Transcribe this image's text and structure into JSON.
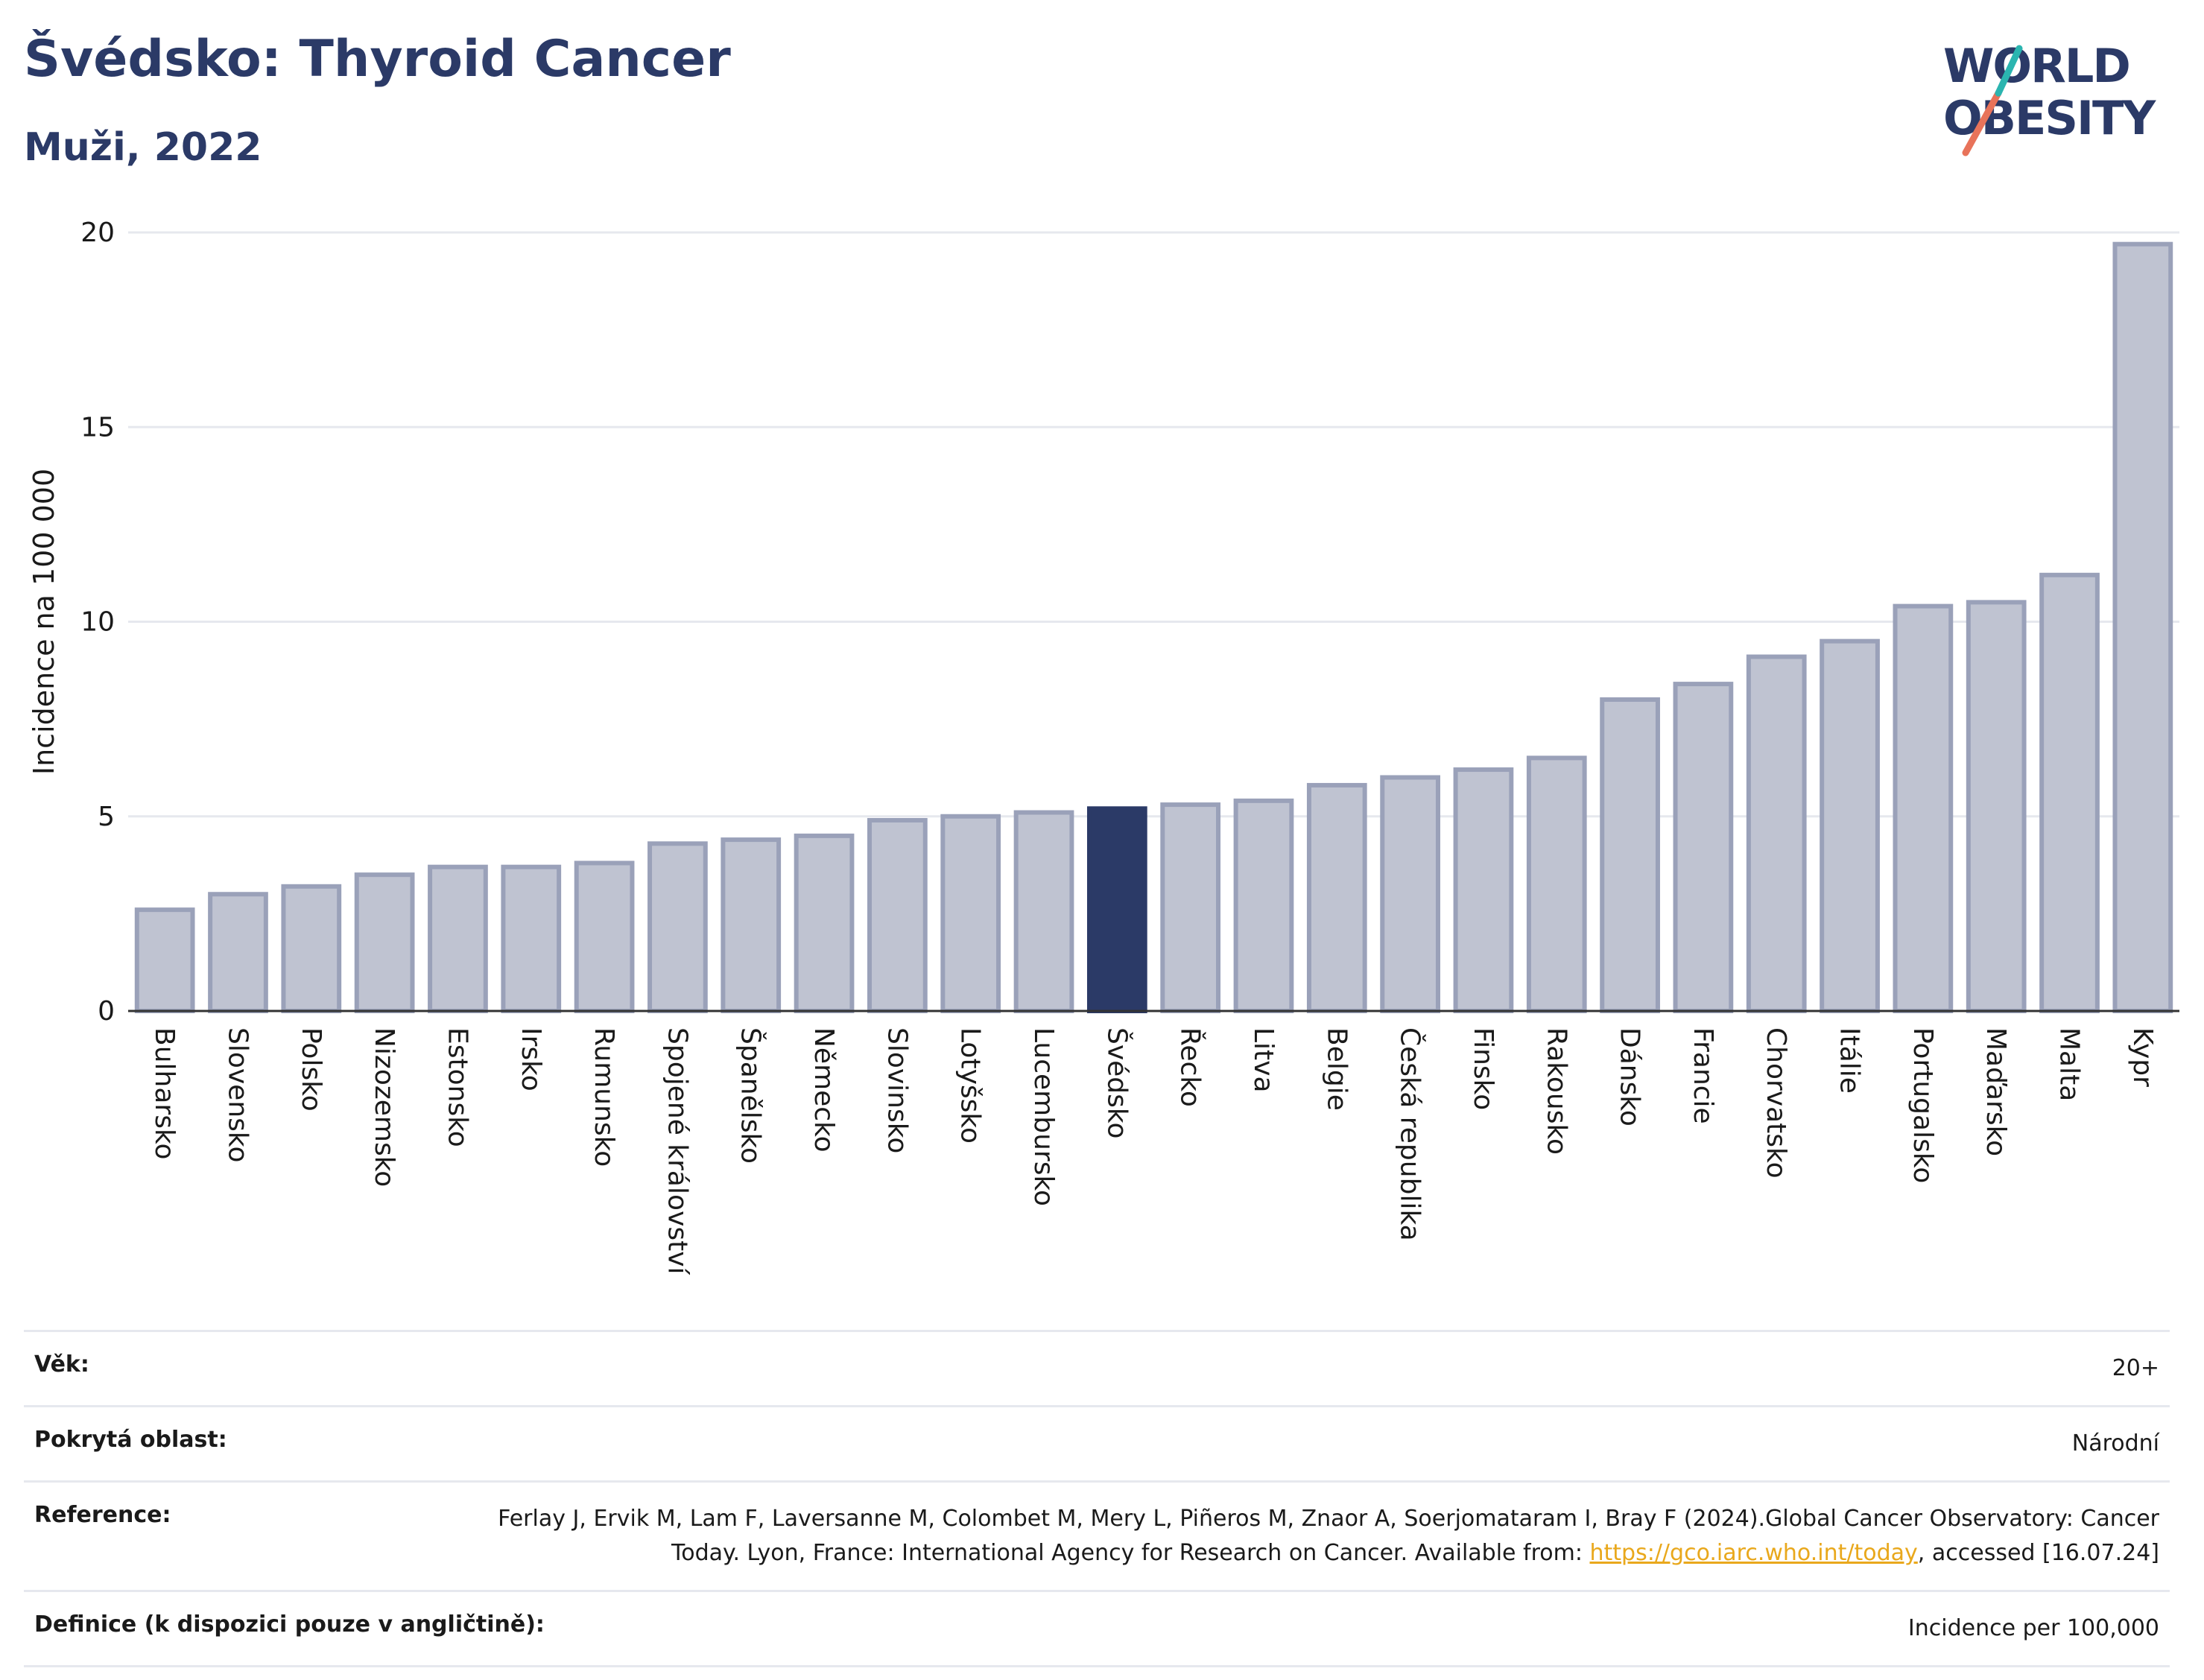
{
  "header": {
    "title": "Švédsko: Thyroid Cancer",
    "subtitle": "Muži, 2022"
  },
  "logo": {
    "line1": "WORLD",
    "line2": "OBESITY"
  },
  "colors": {
    "bar": "#bfc3d1",
    "bar_border": "#9aa1b9",
    "highlight": "#2b3a67",
    "grid": "#e6e8ee",
    "text": "#1a1a1a"
  },
  "chart_data": {
    "type": "bar",
    "ylabel": "Incidence na 100 000",
    "ylim": [
      0,
      20
    ],
    "yticks": [
      0,
      5,
      10,
      15,
      20
    ],
    "highlight": "Švédsko",
    "categories": [
      "Bulharsko",
      "Slovensko",
      "Polsko",
      "Nizozemsko",
      "Estonsko",
      "Irsko",
      "Rumunsko",
      "Spojené království",
      "Španělsko",
      "Německo",
      "Slovinsko",
      "Lotyšsko",
      "Lucembursko",
      "Švédsko",
      "Řecko",
      "Litva",
      "Belgie",
      "Česká republika",
      "Finsko",
      "Rakousko",
      "Dánsko",
      "Francie",
      "Chorvatsko",
      "Itálie",
      "Portugalsko",
      "Maďarsko",
      "Malta",
      "Kypr"
    ],
    "values": [
      2.6,
      3.0,
      3.2,
      3.5,
      3.7,
      3.7,
      3.8,
      4.3,
      4.4,
      4.5,
      4.9,
      5.0,
      5.1,
      5.2,
      5.3,
      5.4,
      5.8,
      6.0,
      6.2,
      6.5,
      8.0,
      8.4,
      9.1,
      9.5,
      10.4,
      10.5,
      11.2,
      19.7
    ]
  },
  "meta": {
    "age_label": "Věk:",
    "age_value": "20+",
    "coverage_label": "Pokrytá oblast:",
    "coverage_value": "Národní",
    "reference_label": "Reference:",
    "reference_text": "Ferlay J, Ervik M, Lam F, Laversanne M, Colombet M, Mery L, Piñeros M, Znaor A, Soerjomataram I, Bray F (2024).Global Cancer Observatory: Cancer Today. Lyon, France: International Agency for Research on Cancer. Available from: ",
    "reference_link": "https://gco.iarc.who.int/today",
    "reference_suffix": ", accessed [16.07.24]",
    "definition_label": "Definice (k dispozici pouze v angličtině):",
    "definition_value": "Incidence per 100,000"
  }
}
